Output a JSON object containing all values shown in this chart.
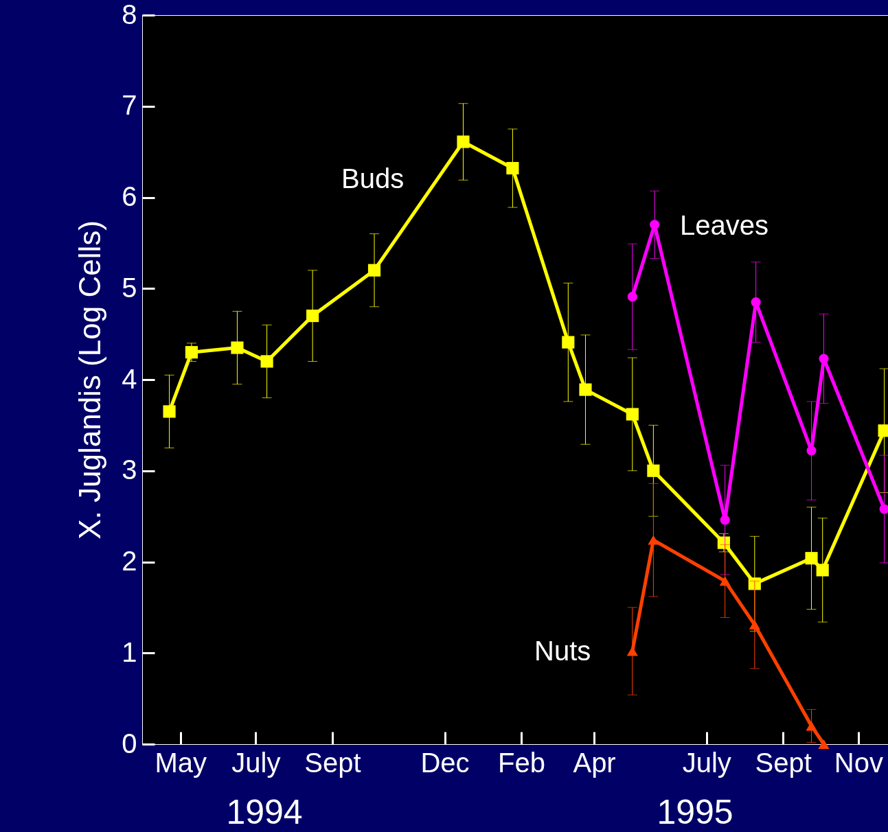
{
  "chart_data": {
    "type": "line",
    "ylabel": "X. Juglandis (Log Cells)",
    "annotations": [
      "1994",
      "1995"
    ],
    "xlim": [
      "1994-03-31",
      "1995-11-25"
    ],
    "xticks": [
      {
        "value": "1994-05-01",
        "label": "May"
      },
      {
        "value": "1994-07-01",
        "label": "July"
      },
      {
        "value": "1994-09-01",
        "label": "Sept"
      },
      {
        "value": "1994-12-01",
        "label": "Dec"
      },
      {
        "value": "1995-02-01",
        "label": "Feb"
      },
      {
        "value": "1995-04-01",
        "label": "Apr"
      },
      {
        "value": "1995-07-01",
        "label": "July"
      },
      {
        "value": "1995-09-01",
        "label": "Sept"
      },
      {
        "value": "1995-11-01",
        "label": "Nov"
      }
    ],
    "ylim": [
      0,
      8
    ],
    "yticks": [
      0,
      1,
      2,
      3,
      4,
      5,
      6,
      7,
      8
    ],
    "grid": false,
    "line_style": "solid",
    "series": [
      {
        "name": "Buds",
        "color": "#ffff00",
        "marker": "square",
        "x": [
          "1994-04-22",
          "1994-05-10",
          "1994-06-16",
          "1994-07-10",
          "1994-08-16",
          "1994-10-05",
          "1994-12-16",
          "1995-01-25",
          "1995-03-11",
          "1995-03-25",
          "1995-05-02",
          "1995-05-19",
          "1995-07-15",
          "1995-08-09",
          "1995-09-24",
          "1995-10-03",
          "1995-11-22"
        ],
        "values": [
          3.65,
          4.3,
          4.35,
          4.2,
          4.7,
          5.2,
          6.61,
          6.32,
          4.41,
          3.89,
          3.62,
          3.0,
          2.21,
          1.76,
          2.04,
          1.91,
          3.44
        ],
        "errors": [
          0.4,
          0.1,
          0.4,
          0.4,
          0.5,
          0.4,
          0.42,
          0.43,
          0.65,
          0.6,
          0.62,
          0.5,
          0.1,
          0.52,
          0.56,
          0.57,
          0.68
        ]
      },
      {
        "name": "Leaves",
        "color": "#ff00ff",
        "marker": "circle",
        "x": [
          "1995-05-02",
          "1995-05-20",
          "1995-07-16",
          "1995-08-10",
          "1995-09-24",
          "1995-10-04",
          "1995-11-22"
        ],
        "values": [
          4.91,
          5.7,
          2.46,
          4.85,
          3.22,
          4.23,
          2.58
        ],
        "errors": [
          0.58,
          0.37,
          0.6,
          0.44,
          0.54,
          0.49,
          0.59
        ]
      },
      {
        "name": "Nuts",
        "color": "#ff4000",
        "marker": "triangle",
        "x": [
          "1995-05-02",
          "1995-05-19",
          "1995-07-16",
          "1995-08-09",
          "1995-09-24",
          "1995-10-04"
        ],
        "values": [
          1.02,
          2.24,
          1.79,
          1.31,
          0.2,
          0.0
        ],
        "errors": [
          0.48,
          0.62,
          0.4,
          0.48,
          0.18,
          null
        ]
      }
    ]
  }
}
